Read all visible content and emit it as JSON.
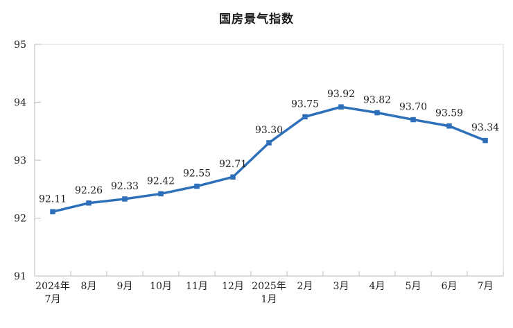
{
  "page": {
    "background": "#FFFFFF"
  },
  "chart_data": {
    "type": "line",
    "title": "国房景气指数",
    "xlabel": "",
    "ylabel": "",
    "categories": [
      "2024年7月",
      "8月",
      "9月",
      "10月",
      "11月",
      "12月",
      "2025年1月",
      "2月",
      "3月",
      "4月",
      "5月",
      "6月",
      "7月"
    ],
    "category_tick_labels": [
      [
        "2024年",
        "7月"
      ],
      [
        "8月"
      ],
      [
        "9月"
      ],
      [
        "10月"
      ],
      [
        "11月"
      ],
      [
        "12月"
      ],
      [
        "2025年",
        "1月"
      ],
      [
        "2月"
      ],
      [
        "3月"
      ],
      [
        "4月"
      ],
      [
        "5月"
      ],
      [
        "6月"
      ],
      [
        "7月"
      ]
    ],
    "series": [
      {
        "name": "国房景气指数",
        "values": [
          92.11,
          92.26,
          92.33,
          92.42,
          92.55,
          92.71,
          93.3,
          93.75,
          93.92,
          93.82,
          93.7,
          93.59,
          93.34
        ],
        "data_labels": [
          "92.11",
          "92.26",
          "92.33",
          "92.42",
          "92.55",
          "92.71",
          "93.30",
          "93.75",
          "93.92",
          "93.82",
          "93.70",
          "93.59",
          "93.34"
        ]
      }
    ],
    "ylim": [
      91,
      95
    ],
    "yticks": [
      91,
      92,
      93,
      94,
      95
    ],
    "grid": false,
    "legend": "none",
    "marker": "square",
    "colors": {
      "line": "#2D6FB8",
      "marker": "#2D6FB8",
      "title_text": "#1A1A1A",
      "axis_text": "#1E1E1E",
      "data_label_text": "#1E1E1E",
      "axis_line": "#B9B9B9",
      "tick": "#BDBDBD",
      "plot_border": "#D9D9D9",
      "background": "#FFFFFF"
    }
  }
}
